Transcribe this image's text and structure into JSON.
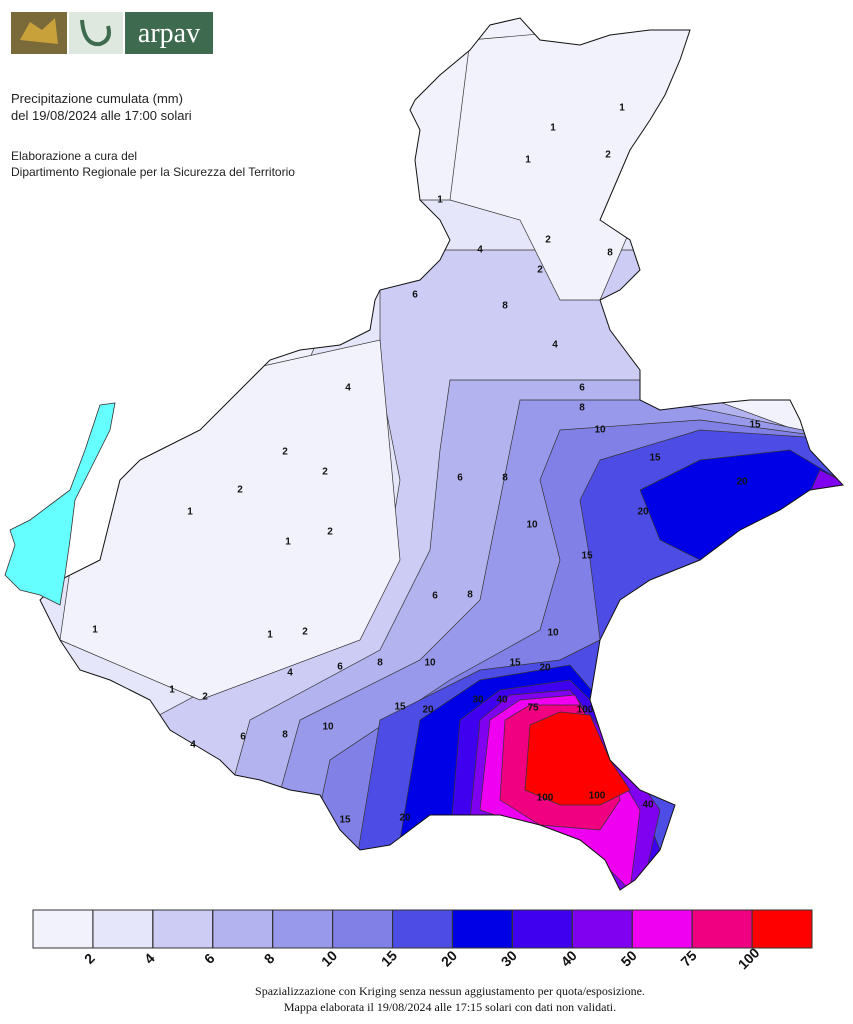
{
  "logo": {
    "text": "arpav"
  },
  "header": {
    "title_lines": [
      "Precipitazione cumulata (mm)",
      "del 19/08/2024 alle 17:00 solari"
    ],
    "credit_lines": [
      "Elaborazione a cura del",
      "Dipartimento Regionale per la Sicurezza del Territorio"
    ]
  },
  "map": {
    "contour_labels": [
      1,
      1,
      1,
      1,
      2,
      2,
      2,
      4,
      4,
      6,
      8,
      8,
      6,
      8,
      10,
      15,
      15,
      20,
      20,
      4,
      2,
      2,
      2,
      1,
      1,
      2,
      6,
      8,
      10,
      15,
      6,
      8,
      10,
      15,
      20,
      1,
      2,
      1,
      1,
      2,
      4,
      6,
      8,
      10,
      15,
      20,
      30,
      40,
      75,
      100,
      100,
      100,
      40,
      15,
      20,
      10,
      8,
      6,
      4
    ]
  },
  "legend": {
    "colors": [
      "#f2f2fc",
      "#e6e6fa",
      "#ccccf5",
      "#b3b3f0",
      "#9999eb",
      "#8080e6",
      "#4d4de6",
      "#0000e6",
      "#4000f0",
      "#8000f0",
      "#f000f0",
      "#f00080",
      "#ff0000"
    ],
    "ticks": [
      2,
      4,
      6,
      8,
      10,
      15,
      20,
      30,
      40,
      50,
      75,
      100
    ]
  },
  "footer": {
    "lines": [
      "Spazializzazione con Kriging senza nessun aggiustamento per quota/esposizione.",
      "Mappa elaborata il 19/08/2024 alle 17:15 solari con dati non validati."
    ]
  }
}
